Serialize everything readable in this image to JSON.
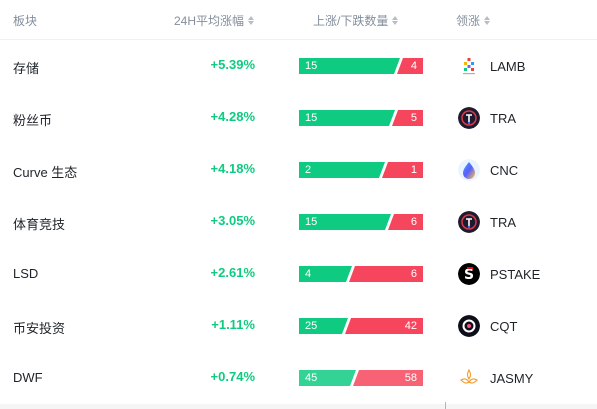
{
  "header": {
    "col_sector": "板块",
    "col_change": "24H平均涨幅",
    "col_updown": "上涨/下跌数量",
    "col_leader": "领涨"
  },
  "colors": {
    "up": "#0ecb81",
    "down": "#f6465d"
  },
  "rows": [
    {
      "sector": "存储",
      "change": "+5.39%",
      "up": 15,
      "down": 4,
      "up_label": "15",
      "down_label": "4",
      "leader": "LAMB",
      "leader_icon": "lamb-icon"
    },
    {
      "sector": "粉丝币",
      "change": "+4.28%",
      "up": 15,
      "down": 5,
      "up_label": "15",
      "down_label": "5",
      "leader": "TRA",
      "leader_icon": "tra-icon"
    },
    {
      "sector": "Curve 生态",
      "change": "+4.18%",
      "up": 2,
      "down": 1,
      "up_label": "2",
      "down_label": "1",
      "leader": "CNC",
      "leader_icon": "cnc-icon"
    },
    {
      "sector": "体育竞技",
      "change": "+3.05%",
      "up": 15,
      "down": 6,
      "up_label": "15",
      "down_label": "6",
      "leader": "TRA",
      "leader_icon": "tra-icon"
    },
    {
      "sector": "LSD",
      "change": "+2.61%",
      "up": 4,
      "down": 6,
      "up_label": "4",
      "down_label": "6",
      "leader": "PSTAKE",
      "leader_icon": "pstake-icon"
    },
    {
      "sector": "币安投资",
      "change": "+1.11%",
      "up": 25,
      "down": 42,
      "up_label": "25",
      "down_label": "42",
      "leader": "CQT",
      "leader_icon": "cqt-icon"
    },
    {
      "sector": "DWF",
      "change": "+0.74%",
      "up": 45,
      "down": 58,
      "up_label": "45",
      "down_label": "58",
      "leader": "JASMY",
      "leader_icon": "jasmy-icon"
    }
  ]
}
